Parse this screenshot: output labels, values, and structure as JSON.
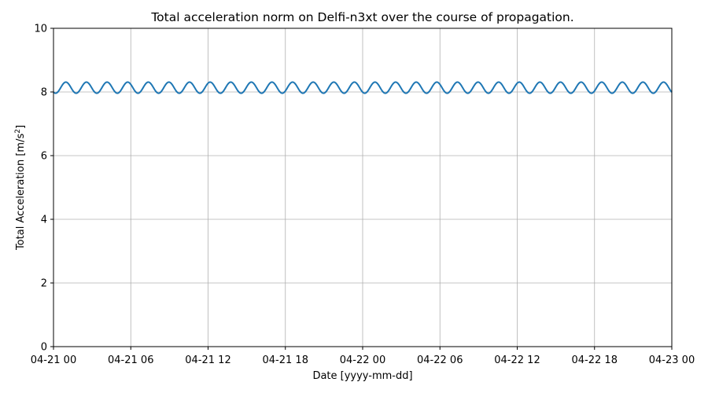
{
  "chart_data": {
    "type": "line",
    "title": "Total acceleration norm on Delfi-n3xt over the course of propagation.",
    "xlabel": "Date [yyyy-mm-dd]",
    "ylabel_main": "Total Acceleration [m/s",
    "ylabel_sup": "2",
    "ylabel_end": "]",
    "x_ticks": [
      {
        "hours": 0,
        "label": "04-21 00"
      },
      {
        "hours": 6,
        "label": "04-21 06"
      },
      {
        "hours": 12,
        "label": "04-21 12"
      },
      {
        "hours": 18,
        "label": "04-21 18"
      },
      {
        "hours": 24,
        "label": "04-22 00"
      },
      {
        "hours": 30,
        "label": "04-22 06"
      },
      {
        "hours": 36,
        "label": "04-22 12"
      },
      {
        "hours": 42,
        "label": "04-22 18"
      },
      {
        "hours": 48,
        "label": "04-23 00"
      }
    ],
    "y_ticks": [
      {
        "value": 0,
        "label": "0"
      },
      {
        "value": 2,
        "label": "2"
      },
      {
        "value": 4,
        "label": "4"
      },
      {
        "value": 6,
        "label": "6"
      },
      {
        "value": 8,
        "label": "8"
      },
      {
        "value": 10,
        "label": "10"
      }
    ],
    "xlim_hours": [
      0,
      48
    ],
    "ylim": [
      0,
      10
    ],
    "grid": true,
    "series": [
      {
        "color": "#1f77b4",
        "mean": 8.135,
        "amplitude": 0.175,
        "period_hours": 1.6,
        "phase_hours": 0.56,
        "x_start_hours": 0,
        "x_end_hours": 48,
        "samples": 961
      }
    ]
  }
}
